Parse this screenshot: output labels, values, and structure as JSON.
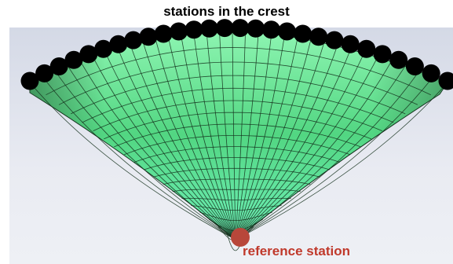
{
  "title": "stations in the crest",
  "reference_label": "reference station",
  "colors": {
    "mesh_fill_light": "#6ff0a0",
    "mesh_fill_dark": "#2f8a4a",
    "mesh_lines": "#14301c",
    "crest_station": "#000000",
    "reference_station": "#b8473a",
    "reference_label": "#c0392b",
    "background": "#dde1ec"
  },
  "crest": {
    "station_count": 28
  },
  "mesh": {
    "radial_divisions": 32,
    "ring_divisions": 20
  }
}
